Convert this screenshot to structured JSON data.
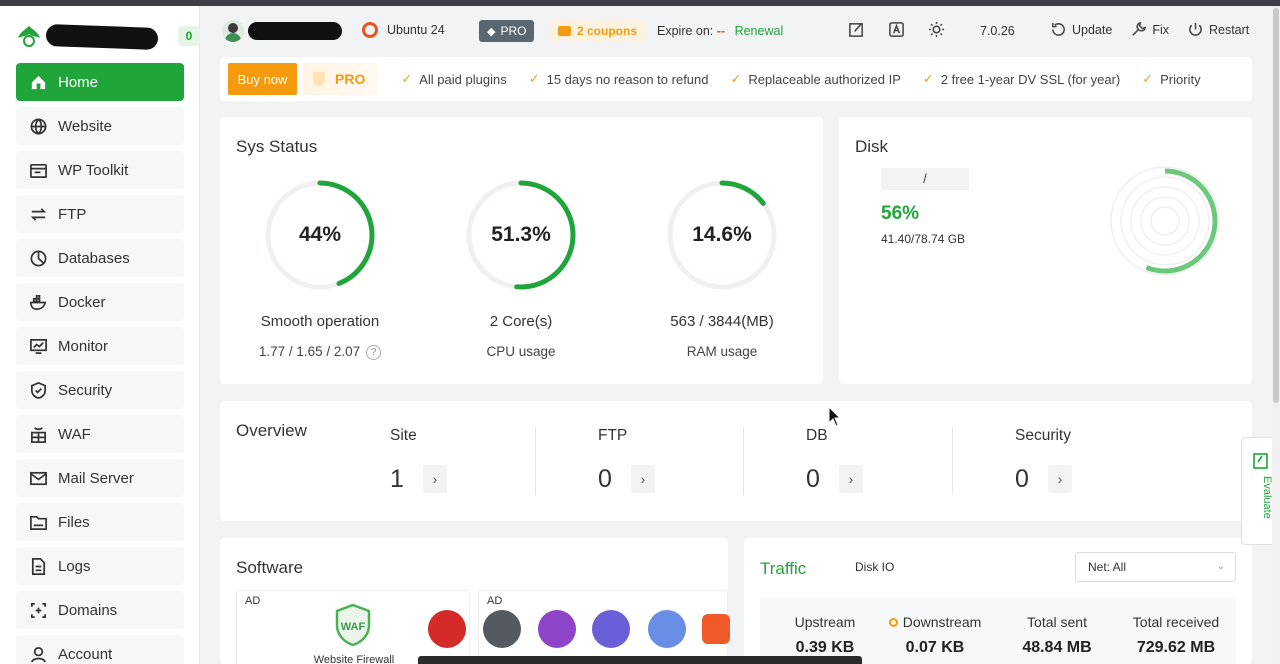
{
  "sidebar": {
    "badge": "0",
    "items": [
      {
        "label": "Home",
        "icon": "home-icon",
        "active": true
      },
      {
        "label": "Website",
        "icon": "globe-icon"
      },
      {
        "label": "WP Toolkit",
        "icon": "wordpress-icon"
      },
      {
        "label": "FTP",
        "icon": "transfer-icon"
      },
      {
        "label": "Databases",
        "icon": "database-icon"
      },
      {
        "label": "Docker",
        "icon": "docker-icon"
      },
      {
        "label": "Monitor",
        "icon": "monitor-icon"
      },
      {
        "label": "Security",
        "icon": "shield-icon"
      },
      {
        "label": "WAF",
        "icon": "firewall-icon"
      },
      {
        "label": "Mail Server",
        "icon": "mail-icon"
      },
      {
        "label": "Files",
        "icon": "folder-icon"
      },
      {
        "label": "Logs",
        "icon": "log-icon"
      },
      {
        "label": "Domains",
        "icon": "domain-icon"
      },
      {
        "label": "Account",
        "icon": "user-icon"
      }
    ]
  },
  "header": {
    "os": "Ubuntu 24",
    "pro": "PRO",
    "coupons": "2 coupons",
    "expire_label": "Expire on:",
    "expire_value": "--",
    "renewal": "Renewal",
    "version": "7.0.26",
    "update": "Update",
    "fix": "Fix",
    "restart": "Restart"
  },
  "probar": {
    "buy": "Buy now",
    "pro": "PRO",
    "features": [
      "All paid plugins",
      "15 days no reason to refund",
      "Replaceable authorized IP",
      "2 free 1-year DV SSL (for year)",
      "Priority"
    ]
  },
  "sys_status": {
    "title": "Sys Status",
    "gauges": [
      {
        "value": "44%",
        "pct": 44,
        "label": "Smooth operation",
        "sub": "1.77 / 1.65 / 2.07",
        "help": "?"
      },
      {
        "value": "51.3%",
        "pct": 51.3,
        "label": "2 Core(s)",
        "sub": "CPU usage"
      },
      {
        "value": "14.6%",
        "pct": 14.6,
        "label": "563 / 3844(MB)",
        "sub": "RAM usage"
      }
    ],
    "accent": "#20a53a"
  },
  "disk": {
    "title": "Disk",
    "mount": "/",
    "percent": "56%",
    "pct": 56,
    "size": "41.40/78.74 GB"
  },
  "overview": {
    "title": "Overview",
    "items": [
      {
        "label": "Site",
        "value": "1"
      },
      {
        "label": "FTP",
        "value": "0"
      },
      {
        "label": "DB",
        "value": "0"
      },
      {
        "label": "Security",
        "value": "0"
      }
    ]
  },
  "software": {
    "title": "Software",
    "ad": "AD",
    "waf_title": "WAF",
    "waf_caption": "Website Firewall"
  },
  "traffic": {
    "title": "Traffic",
    "tab_diskio": "Disk IO",
    "select": "Net: All",
    "stats": [
      {
        "label": "Upstream",
        "value": "0.39 KB"
      },
      {
        "label": "Downstream",
        "value": "0.07 KB"
      },
      {
        "label": "Total sent",
        "value": "48.84 MB"
      },
      {
        "label": "Total received",
        "value": "729.62 MB"
      }
    ]
  },
  "evaluate": "Evaluate"
}
